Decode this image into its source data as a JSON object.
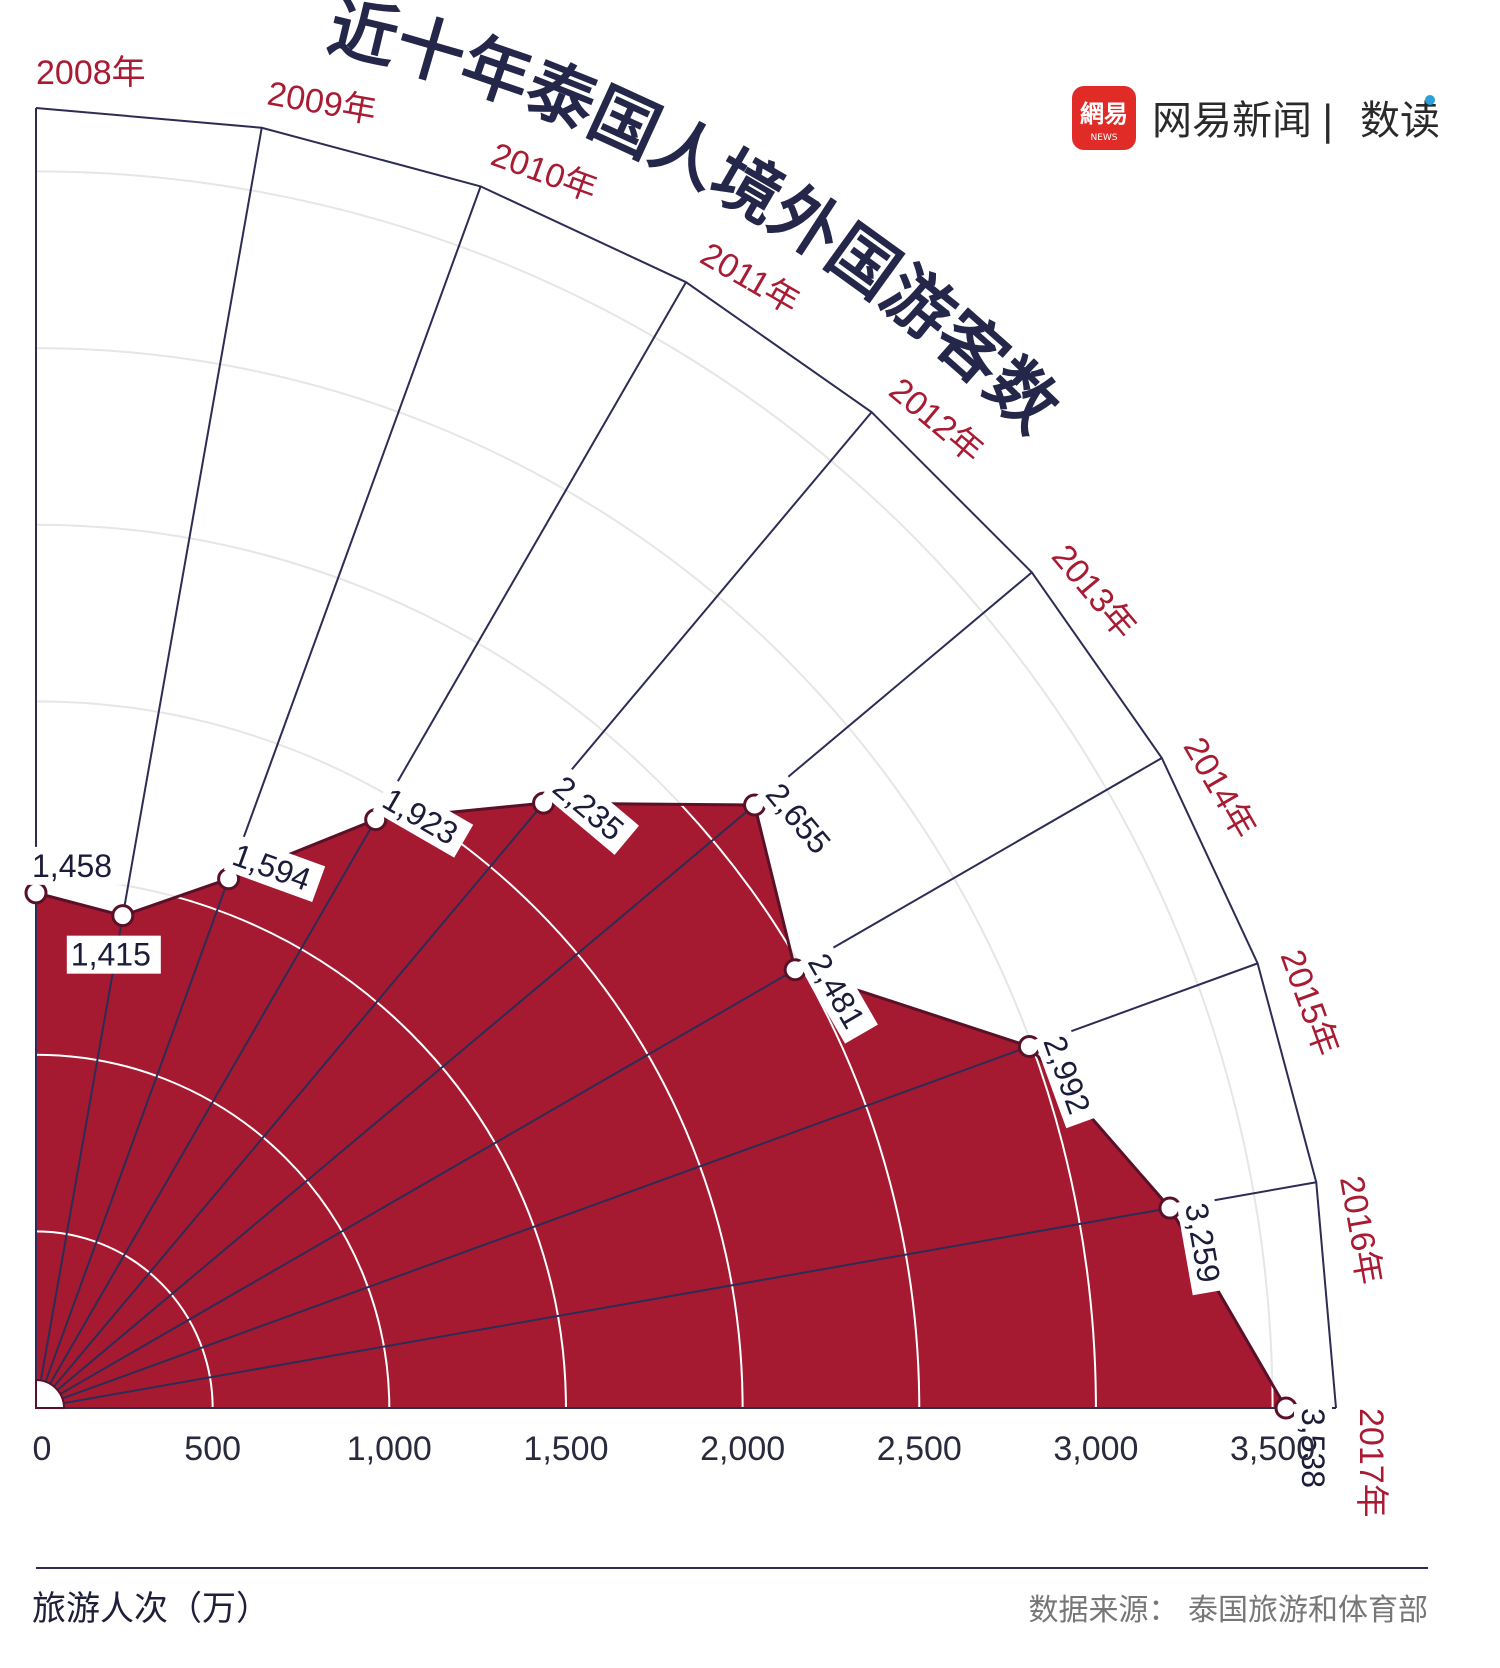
{
  "title": "近十年泰国人境外国游客数",
  "brand": {
    "logo_text": "網易",
    "logo_sub": "NEWS",
    "name": "网易新闻",
    "separator": "|",
    "section": "数读",
    "logo_color": "#e02b27"
  },
  "source": "数据来源：  泰国旅游和体育部",
  "colors": {
    "fill": "#a51a31",
    "outline": "#5a1027",
    "spoke": "#2c2c55",
    "year": "#a81b33",
    "grid_light": "#e6e6e6"
  },
  "chart_data": {
    "type": "area",
    "subtype": "radial-fan",
    "categories": [
      "2008年",
      "2009年",
      "2010年",
      "2011年",
      "2012年",
      "2013年",
      "2014年",
      "2015年",
      "2016年",
      "2017年"
    ],
    "values": [
      1458,
      1415,
      1594,
      1923,
      2235,
      2655,
      2481,
      2992,
      3259,
      3538
    ],
    "value_labels": [
      "1,458",
      "1,415",
      "1,594",
      "1,923",
      "2,235",
      "2,655",
      "2,481",
      "2,992",
      "3,259",
      "3,538"
    ],
    "radial_ticks": [
      0,
      500,
      1000,
      1500,
      2000,
      2500,
      3000,
      3500
    ],
    "radial_tick_labels": [
      "0",
      "500",
      "1,000",
      "1,500",
      "2,000",
      "2,500",
      "3,000",
      "3,500"
    ],
    "axis_title": "旅游人次（万）",
    "rlim": [
      0,
      3700
    ],
    "grid": true
  }
}
